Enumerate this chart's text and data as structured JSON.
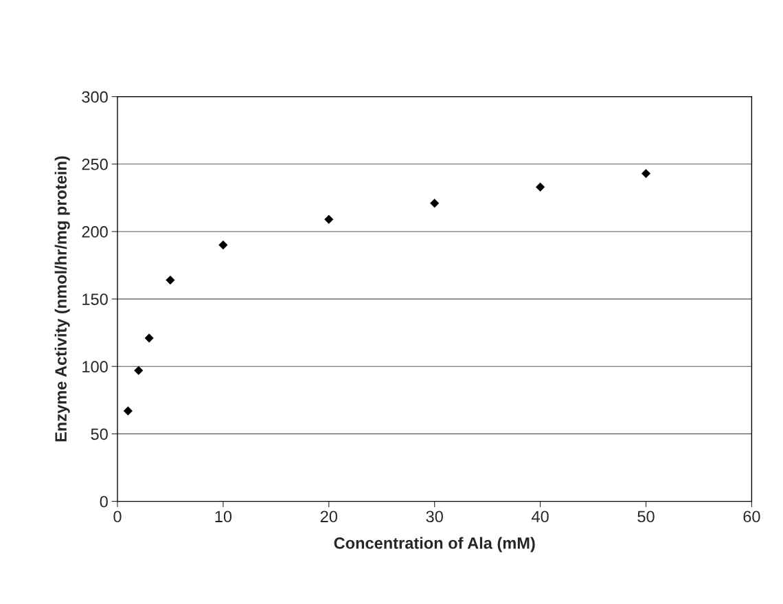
{
  "chart_data": {
    "type": "scatter",
    "xlabel": "Concentration of Ala (mM)",
    "ylabel": "Enzyme Activity (nmol/hr/mg protein)",
    "x": [
      1,
      2,
      3,
      5,
      10,
      20,
      30,
      40,
      50
    ],
    "values": [
      67,
      97,
      121,
      164,
      190,
      209,
      221,
      233,
      243
    ],
    "color": "#000000",
    "marker": "diamond",
    "xlim": [
      0,
      60
    ],
    "xticks": [
      0,
      10,
      20,
      30,
      40,
      50,
      60
    ],
    "ylim": [
      0,
      300
    ],
    "yticks": [
      0,
      50,
      100,
      150,
      200,
      250,
      300
    ],
    "grid": "y",
    "legend": false
  }
}
